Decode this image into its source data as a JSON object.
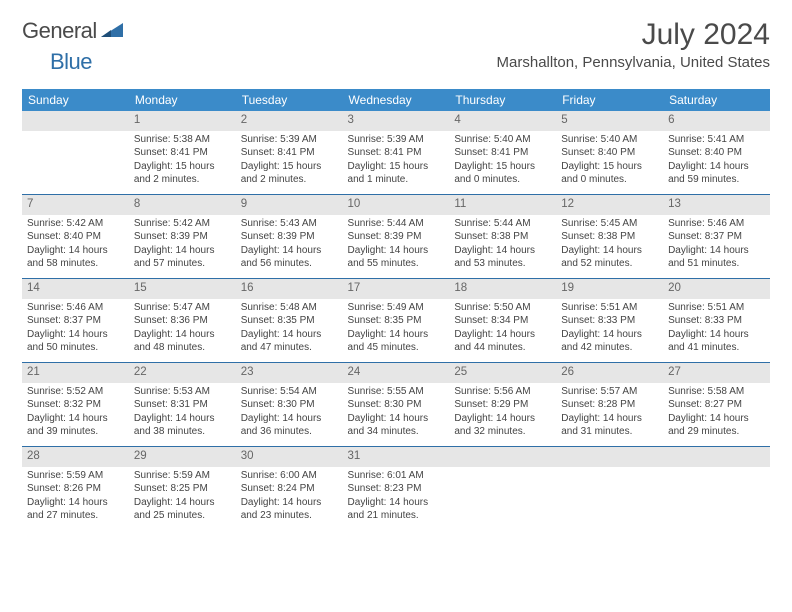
{
  "brand": {
    "part1": "General",
    "part2": "Blue",
    "logo_color": "#2f6fa7"
  },
  "header": {
    "title": "July 2024",
    "location": "Marshallton, Pennsylvania, United States"
  },
  "theme": {
    "header_bg": "#3b8bc9",
    "date_bg": "#e6e6e6",
    "rule": "#2f6fa7",
    "text": "#444444"
  },
  "dow": [
    "Sunday",
    "Monday",
    "Tuesday",
    "Wednesday",
    "Thursday",
    "Friday",
    "Saturday"
  ],
  "weeks": [
    [
      null,
      {
        "n": "1",
        "sr": "5:38 AM",
        "ss": "8:41 PM",
        "dl": "15 hours and 2 minutes."
      },
      {
        "n": "2",
        "sr": "5:39 AM",
        "ss": "8:41 PM",
        "dl": "15 hours and 2 minutes."
      },
      {
        "n": "3",
        "sr": "5:39 AM",
        "ss": "8:41 PM",
        "dl": "15 hours and 1 minute."
      },
      {
        "n": "4",
        "sr": "5:40 AM",
        "ss": "8:41 PM",
        "dl": "15 hours and 0 minutes."
      },
      {
        "n": "5",
        "sr": "5:40 AM",
        "ss": "8:40 PM",
        "dl": "15 hours and 0 minutes."
      },
      {
        "n": "6",
        "sr": "5:41 AM",
        "ss": "8:40 PM",
        "dl": "14 hours and 59 minutes."
      }
    ],
    [
      {
        "n": "7",
        "sr": "5:42 AM",
        "ss": "8:40 PM",
        "dl": "14 hours and 58 minutes."
      },
      {
        "n": "8",
        "sr": "5:42 AM",
        "ss": "8:39 PM",
        "dl": "14 hours and 57 minutes."
      },
      {
        "n": "9",
        "sr": "5:43 AM",
        "ss": "8:39 PM",
        "dl": "14 hours and 56 minutes."
      },
      {
        "n": "10",
        "sr": "5:44 AM",
        "ss": "8:39 PM",
        "dl": "14 hours and 55 minutes."
      },
      {
        "n": "11",
        "sr": "5:44 AM",
        "ss": "8:38 PM",
        "dl": "14 hours and 53 minutes."
      },
      {
        "n": "12",
        "sr": "5:45 AM",
        "ss": "8:38 PM",
        "dl": "14 hours and 52 minutes."
      },
      {
        "n": "13",
        "sr": "5:46 AM",
        "ss": "8:37 PM",
        "dl": "14 hours and 51 minutes."
      }
    ],
    [
      {
        "n": "14",
        "sr": "5:46 AM",
        "ss": "8:37 PM",
        "dl": "14 hours and 50 minutes."
      },
      {
        "n": "15",
        "sr": "5:47 AM",
        "ss": "8:36 PM",
        "dl": "14 hours and 48 minutes."
      },
      {
        "n": "16",
        "sr": "5:48 AM",
        "ss": "8:35 PM",
        "dl": "14 hours and 47 minutes."
      },
      {
        "n": "17",
        "sr": "5:49 AM",
        "ss": "8:35 PM",
        "dl": "14 hours and 45 minutes."
      },
      {
        "n": "18",
        "sr": "5:50 AM",
        "ss": "8:34 PM",
        "dl": "14 hours and 44 minutes."
      },
      {
        "n": "19",
        "sr": "5:51 AM",
        "ss": "8:33 PM",
        "dl": "14 hours and 42 minutes."
      },
      {
        "n": "20",
        "sr": "5:51 AM",
        "ss": "8:33 PM",
        "dl": "14 hours and 41 minutes."
      }
    ],
    [
      {
        "n": "21",
        "sr": "5:52 AM",
        "ss": "8:32 PM",
        "dl": "14 hours and 39 minutes."
      },
      {
        "n": "22",
        "sr": "5:53 AM",
        "ss": "8:31 PM",
        "dl": "14 hours and 38 minutes."
      },
      {
        "n": "23",
        "sr": "5:54 AM",
        "ss": "8:30 PM",
        "dl": "14 hours and 36 minutes."
      },
      {
        "n": "24",
        "sr": "5:55 AM",
        "ss": "8:30 PM",
        "dl": "14 hours and 34 minutes."
      },
      {
        "n": "25",
        "sr": "5:56 AM",
        "ss": "8:29 PM",
        "dl": "14 hours and 32 minutes."
      },
      {
        "n": "26",
        "sr": "5:57 AM",
        "ss": "8:28 PM",
        "dl": "14 hours and 31 minutes."
      },
      {
        "n": "27",
        "sr": "5:58 AM",
        "ss": "8:27 PM",
        "dl": "14 hours and 29 minutes."
      }
    ],
    [
      {
        "n": "28",
        "sr": "5:59 AM",
        "ss": "8:26 PM",
        "dl": "14 hours and 27 minutes."
      },
      {
        "n": "29",
        "sr": "5:59 AM",
        "ss": "8:25 PM",
        "dl": "14 hours and 25 minutes."
      },
      {
        "n": "30",
        "sr": "6:00 AM",
        "ss": "8:24 PM",
        "dl": "14 hours and 23 minutes."
      },
      {
        "n": "31",
        "sr": "6:01 AM",
        "ss": "8:23 PM",
        "dl": "14 hours and 21 minutes."
      },
      null,
      null,
      null
    ]
  ],
  "labels": {
    "sunrise": "Sunrise:",
    "sunset": "Sunset:",
    "daylight": "Daylight:"
  }
}
